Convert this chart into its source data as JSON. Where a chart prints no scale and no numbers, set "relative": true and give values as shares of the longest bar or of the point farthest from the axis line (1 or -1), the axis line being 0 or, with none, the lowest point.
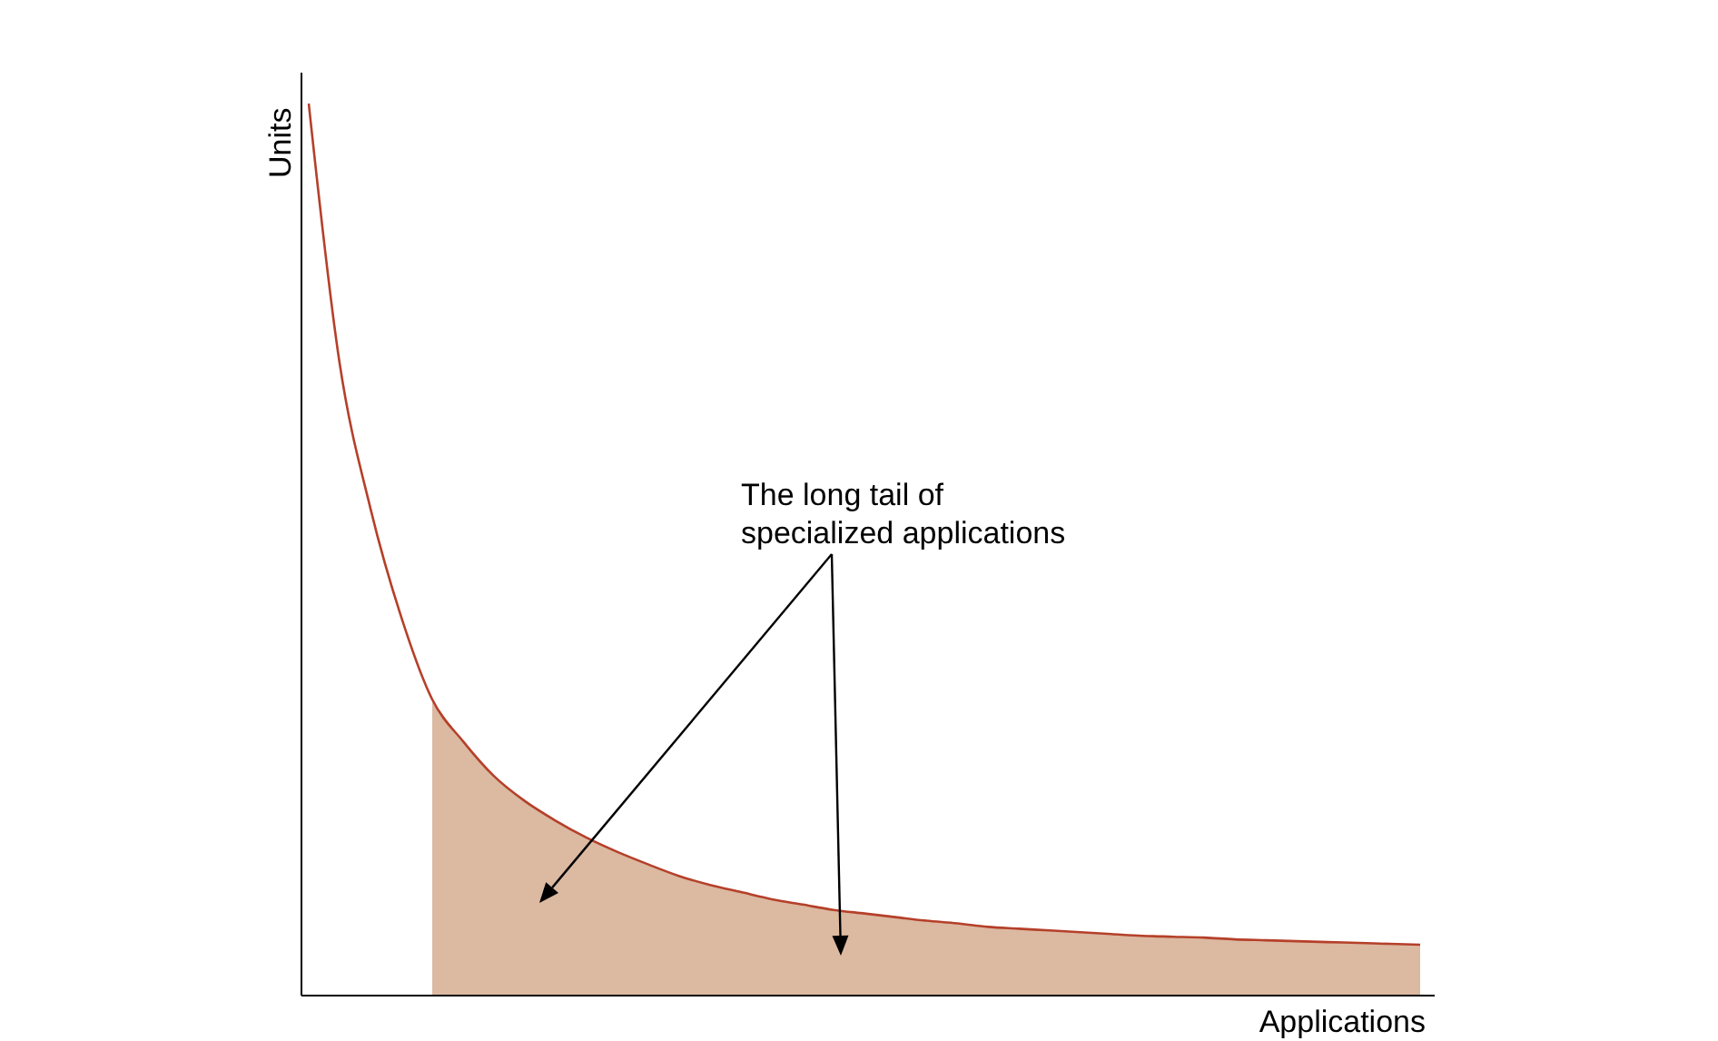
{
  "chart_data": {
    "type": "line",
    "relative": true,
    "xlabel": "Applications",
    "ylabel": "Units",
    "categories": [
      null,
      null,
      null,
      null,
      null,
      null,
      null,
      null,
      null,
      null,
      null,
      null,
      null,
      null,
      null,
      null,
      null,
      null,
      null,
      null,
      null,
      null,
      null,
      null,
      null,
      null,
      null,
      null,
      null,
      null,
      null,
      null,
      null,
      null,
      null,
      null,
      null
    ],
    "series": [
      {
        "type": "area",
        "color": "#dcb9a1",
        "values": [
          null,
          null,
          null,
          null,
          0.332,
          0.285,
          0.246,
          0.218,
          0.196,
          0.177,
          0.161,
          0.147,
          0.134,
          0.124,
          0.116,
          0.108,
          0.102,
          0.096,
          0.092,
          0.088,
          0.084,
          0.081,
          0.077,
          0.075,
          0.073,
          0.071,
          0.069,
          0.067,
          0.066,
          0.065,
          0.063,
          0.062,
          0.061,
          0.06,
          0.059,
          0.058,
          0.057
        ]
      },
      {
        "color": "#b5402a",
        "values": [
          1,
          0.709,
          0.546,
          0.424,
          0.332,
          0.285,
          0.246,
          0.218,
          0.196,
          0.177,
          0.161,
          0.147,
          0.134,
          0.124,
          0.116,
          0.108,
          0.102,
          0.096,
          0.092,
          0.088,
          0.084,
          0.081,
          0.077,
          0.075,
          0.073,
          0.071,
          0.069,
          0.067,
          0.066,
          0.065,
          0.063,
          0.062,
          0.061,
          0.06,
          0.059,
          0.058,
          0.057
        ]
      }
    ],
    "annotations": [
      "The long tail of\nspecialized applications"
    ]
  }
}
